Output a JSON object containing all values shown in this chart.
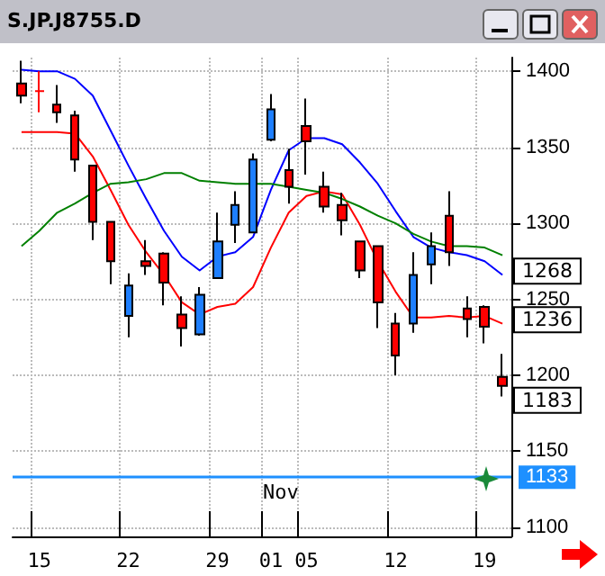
{
  "chart_data": {
    "type": "candlestick",
    "title": "S.JP.J8755.D",
    "categories": [
      null,
      "15",
      null,
      null,
      null,
      null,
      "22",
      null,
      null,
      null,
      null,
      "29",
      null,
      null,
      "01",
      null,
      "05",
      null,
      null,
      null,
      null,
      "12",
      null,
      null,
      null,
      null,
      "19",
      null
    ],
    "series": [
      {
        "ohlc": [
          [
            1392,
            1407,
            1379,
            1384
          ],
          [
            1387,
            1400,
            1373,
            1387
          ],
          [
            1378,
            1391,
            1366,
            1373
          ],
          [
            1371,
            1374,
            1334,
            1342
          ],
          [
            1338,
            1338,
            1289,
            1301
          ],
          [
            1301,
            1301,
            1260,
            1275
          ],
          [
            1239,
            1267,
            1225,
            1259
          ],
          [
            1275,
            1289,
            1266,
            1272
          ],
          [
            1280,
            1281,
            1246,
            1261
          ],
          [
            1240,
            1252,
            1219,
            1231
          ],
          [
            1227,
            1258,
            1226,
            1253
          ],
          [
            1264,
            1307,
            1264,
            1288
          ],
          [
            1299,
            1321,
            1287,
            1312
          ],
          [
            1294,
            1346,
            1294,
            1342
          ],
          [
            1355,
            1385,
            1354,
            1375
          ],
          [
            1335,
            1349,
            1313,
            1324
          ],
          [
            1364,
            1382,
            1332,
            1354
          ],
          [
            1324,
            1334,
            1307,
            1311
          ],
          [
            1312,
            1320,
            1292,
            1302
          ],
          [
            1288,
            1288,
            1264,
            1269
          ],
          [
            1285,
            1285,
            1231,
            1248
          ],
          [
            1234,
            1241,
            1200,
            1213
          ],
          [
            1234,
            1281,
            1228,
            1266
          ],
          [
            1273,
            1294,
            1260,
            1285
          ],
          [
            1305,
            1321,
            1272,
            1281
          ],
          [
            1244,
            1252,
            1225,
            1237
          ],
          [
            1245,
            1246,
            1221,
            1232
          ],
          [
            1199,
            1214,
            1186,
            1193
          ]
        ],
        "colors": [
          "#ff0000",
          "#ff0000",
          "#ff0000",
          "#ff0000",
          "#ff0000",
          "#ff0000",
          "#1e7fff",
          "#ff0000",
          "#ff0000",
          "#ff0000",
          "#1e7fff",
          "#1e7fff",
          "#1e7fff",
          "#1e7fff",
          "#1e7fff",
          "#ff0000",
          "#ff0000",
          "#ff0000",
          "#ff0000",
          "#ff0000",
          "#ff0000",
          "#ff0000",
          "#1e7fff",
          "#1e7fff",
          "#ff0000",
          "#ff0000",
          "#ff0000",
          "#ff0000"
        ]
      },
      {
        "type": "line",
        "color": "#0000ff",
        "values": [
          1401,
          1400,
          1400,
          1395,
          1384,
          1361,
          1338,
          1316,
          1295,
          1278,
          1269,
          1278,
          1281,
          1291,
          1322,
          1348,
          1356,
          1356,
          1352,
          1340,
          1326,
          1308,
          1291,
          1284,
          1281,
          1279,
          1275,
          1266
        ]
      },
      {
        "type": "line",
        "color": "#ff0000",
        "values": [
          1360,
          1360,
          1360,
          1359,
          1344,
          1322,
          1299,
          1281,
          1266,
          1248,
          1240,
          1245,
          1247,
          1258,
          1284,
          1307,
          1318,
          1321,
          1319,
          1299,
          1275,
          1255,
          1238,
          1238,
          1239,
          1238,
          1239,
          1234
        ]
      },
      {
        "type": "line",
        "color": "#008000",
        "values": [
          1285,
          1295,
          1307,
          1313,
          1320,
          1326,
          1327,
          1329,
          1333,
          1333,
          1328,
          1327,
          1326,
          1326,
          1326,
          1324,
          1322,
          1320,
          1316,
          1311,
          1305,
          1300,
          1293,
          1288,
          1285,
          1285,
          1284,
          1279
        ]
      }
    ],
    "ylim": [
      1094,
      1409
    ],
    "yticks": [
      1100,
      1150,
      1200,
      1250,
      1300,
      1350,
      1400
    ],
    "grid": true,
    "marker": "none",
    "ref_lines": [
      {
        "axis": "y",
        "value": 1133,
        "label": "1133",
        "color": "#1e90ff"
      }
    ],
    "annotations": [
      "Nov",
      {
        "text": "1268",
        "y": 1268
      },
      {
        "text": "1236",
        "y": 1236
      },
      {
        "text": "1183",
        "y": 1183
      }
    ]
  }
}
